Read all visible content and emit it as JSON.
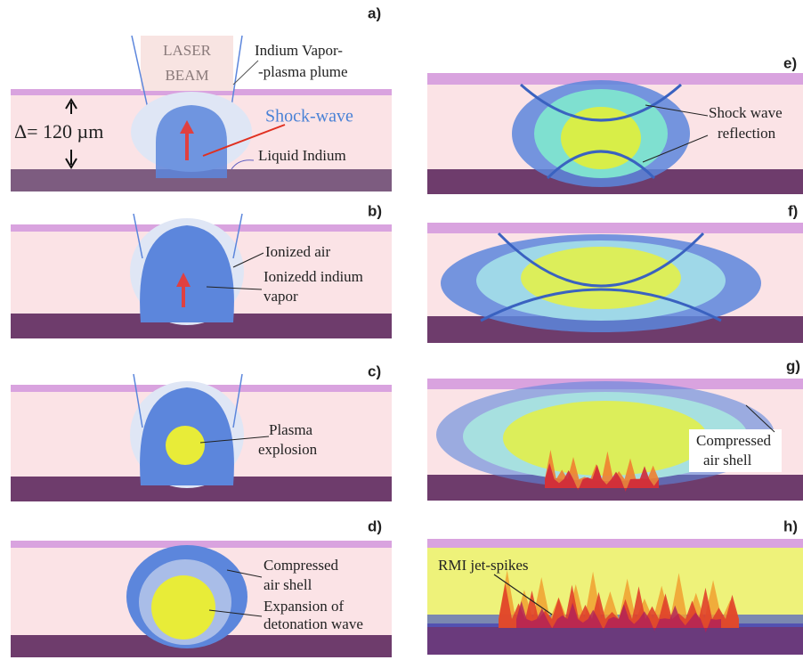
{
  "panels": [
    {
      "label": "a)",
      "notes": [
        "LASER",
        "BEAM",
        "Indium Vapor-",
        "-plasma plume",
        "Shock-wave",
        "Δ= 120 µm",
        "Liquid  Indium"
      ]
    },
    {
      "label": "b)",
      "notes": [
        "Ionized air",
        "Ionizedd indium",
        "vapor"
      ]
    },
    {
      "label": "c)",
      "notes": [
        "Plasma",
        "explosion"
      ]
    },
    {
      "label": "d)",
      "notes": [
        "Compressed",
        "air shell",
        "Expansion of",
        "detonation wave"
      ]
    },
    {
      "label": "e)",
      "notes": [
        "Shock wave",
        "reflection"
      ]
    },
    {
      "label": "f)",
      "notes": []
    },
    {
      "label": "g)",
      "notes": [
        "Compressed",
        "air  shell"
      ]
    },
    {
      "label": "h)",
      "notes": [
        "RMI  jet-spikes"
      ]
    }
  ]
}
